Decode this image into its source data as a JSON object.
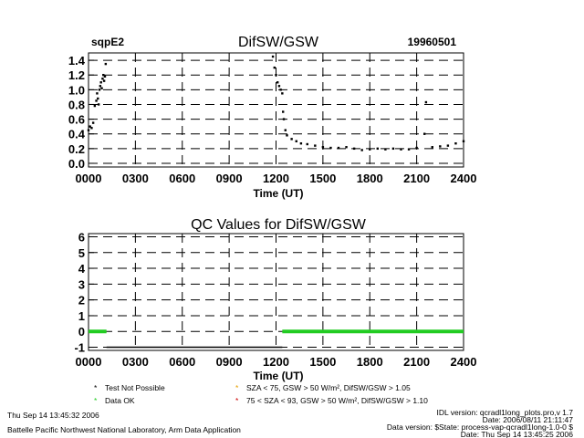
{
  "header": {
    "site": "sqpE2",
    "title": "DifSW/GSW",
    "date": "19960501"
  },
  "qc_title": "QC Values for DifSW/GSW",
  "legend": {
    "items": [
      {
        "symbol": "*",
        "color": "#000000",
        "label": "Test Not Possible"
      },
      {
        "symbol": "*",
        "color": "#22cc22",
        "label": "Data OK"
      },
      {
        "symbol": "*",
        "color": "#e6a000",
        "label": "SZA < 75, GSW > 50 W/m², DifSW/GSW > 1.05"
      },
      {
        "symbol": "*",
        "color": "#cc0000",
        "label": "75 < SZA < 93, GSW > 50 W/m², DifSW/GSW > 1.10"
      }
    ]
  },
  "footer": {
    "timestamp": "Thu Sep 14 13:45:32 2006",
    "org": "Battelle Pacific Northwest National Laboratory, Arm Data Application",
    "idl": "IDL version: qcradl1long_plots.pro,v 1.7",
    "file_date": "Date: 2006/08/11 21:11:47",
    "data_version": "Data version: $State: process-vap-qcradl1long-1.0-0 $",
    "run_date": "Date: Thu Sep 14 13:45:25 2006"
  },
  "colors": {
    "data_ok": "#22cc22",
    "axis": "#000000"
  },
  "chart_data": [
    {
      "type": "scatter",
      "title": "DifSW/GSW",
      "xlabel": "Time (UT)",
      "ylabel": "",
      "xlim": [
        0,
        2400
      ],
      "ylim": [
        -0.05,
        1.5
      ],
      "xticks": [
        "0000",
        "0300",
        "0600",
        "0900",
        "1200",
        "1500",
        "1800",
        "2100",
        "2400"
      ],
      "yticks": [
        "0.0",
        "0.2",
        "0.4",
        "0.6",
        "0.8",
        "1.0",
        "1.2",
        "1.4"
      ],
      "grid": true,
      "series": [
        {
          "points": [
            [
              0,
              0.45
            ],
            [
              10,
              0.5
            ],
            [
              20,
              0.48
            ],
            [
              30,
              0.55
            ],
            [
              40,
              0.78
            ],
            [
              50,
              0.85
            ],
            [
              55,
              0.95
            ],
            [
              60,
              0.88
            ],
            [
              65,
              0.8
            ],
            [
              70,
              1.0
            ],
            [
              75,
              1.05
            ],
            [
              80,
              1.1
            ],
            [
              85,
              1.02
            ],
            [
              90,
              1.15
            ],
            [
              95,
              1.2
            ],
            [
              100,
              1.12
            ],
            [
              105,
              1.18
            ],
            [
              110,
              1.35
            ],
            [
              1180,
              1.45
            ],
            [
              1190,
              1.3
            ],
            [
              1200,
              1.2
            ],
            [
              1210,
              1.1
            ],
            [
              1220,
              1.05
            ],
            [
              1230,
              1.0
            ],
            [
              1240,
              0.95
            ],
            [
              1245,
              0.7
            ],
            [
              1250,
              0.6
            ],
            [
              1260,
              0.45
            ],
            [
              1270,
              0.38
            ],
            [
              1300,
              0.33
            ],
            [
              1330,
              0.3
            ],
            [
              1360,
              0.27
            ],
            [
              1400,
              0.26
            ],
            [
              1450,
              0.24
            ],
            [
              1500,
              0.22
            ],
            [
              1550,
              0.21
            ],
            [
              1600,
              0.21
            ],
            [
              1650,
              0.22
            ],
            [
              1700,
              0.2
            ],
            [
              1750,
              0.18
            ],
            [
              1800,
              0.19
            ],
            [
              1850,
              0.2
            ],
            [
              1900,
              0.19
            ],
            [
              1950,
              0.2
            ],
            [
              2000,
              0.19
            ],
            [
              2050,
              0.19
            ],
            [
              2100,
              0.21
            ],
            [
              2150,
              0.4
            ],
            [
              2160,
              0.83
            ],
            [
              2200,
              0.22
            ],
            [
              2250,
              0.23
            ],
            [
              2300,
              0.24
            ],
            [
              2350,
              0.27
            ],
            [
              2400,
              0.3
            ]
          ]
        }
      ]
    },
    {
      "type": "scatter",
      "title": "QC Values for DifSW/GSW",
      "xlabel": "Time (UT)",
      "ylabel": "",
      "xlim": [
        0,
        2400
      ],
      "ylim": [
        -1.2,
        6.2
      ],
      "xticks": [
        "0000",
        "0300",
        "0600",
        "0900",
        "1200",
        "1500",
        "1800",
        "2100",
        "2400"
      ],
      "yticks": [
        "-1",
        "0",
        "1",
        "2",
        "3",
        "4",
        "5",
        "6"
      ],
      "grid": true,
      "series": [
        {
          "segments": [
            {
              "x_start": 0,
              "x_end": 115,
              "value": 0,
              "color": "#22cc22"
            },
            {
              "x_start": 1240,
              "x_end": 2400,
              "value": 0,
              "color": "#22cc22"
            }
          ]
        },
        {
          "segments": [
            {
              "x_start": 115,
              "x_end": 1240,
              "value": -1,
              "color": "#000000"
            }
          ]
        }
      ]
    }
  ]
}
